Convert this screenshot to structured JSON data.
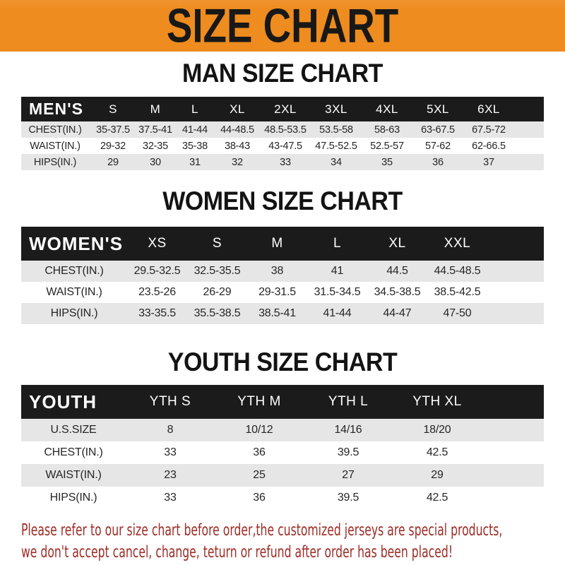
{
  "banner": {
    "title": "SIZE CHART"
  },
  "theme": {
    "banner_bg": "#ee8c1f",
    "banner_text": "#181818",
    "bar_bg": "#1b1b1b",
    "stripe": "#e6e6e6",
    "text": "#1f1f1f",
    "disclaimer": "#9e2c26"
  },
  "sections": [
    {
      "heading": "MAN SIZE CHART",
      "group_label": "MEN'S",
      "sizes": [
        "S",
        "M",
        "L",
        "XL",
        "2XL",
        "3XL",
        "4XL",
        "5XL",
        "6XL"
      ],
      "rows": [
        {
          "label": "CHEST(IN.)",
          "values": [
            "35-37.5",
            "37.5-41",
            "41-44",
            "44-48.5",
            "48.5-53.5",
            "53.5-58",
            "58-63",
            "63-67.5",
            "67.5-72"
          ]
        },
        {
          "label": "WAIST(IN.)",
          "values": [
            "29-32",
            "32-35",
            "35-38",
            "38-43",
            "43-47.5",
            "47.5-52.5",
            "52.5-57",
            "57-62",
            "62-66.5"
          ]
        },
        {
          "label": "HIPS(IN.)",
          "values": [
            "29",
            "30",
            "31",
            "32",
            "33",
            "34",
            "35",
            "36",
            "37"
          ]
        }
      ]
    },
    {
      "heading": "WOMEN SIZE CHART",
      "group_label": "WOMEN'S",
      "sizes": [
        "XS",
        "S",
        "M",
        "L",
        "XL",
        "XXL"
      ],
      "rows": [
        {
          "label": "CHEST(IN.)",
          "values": [
            "29.5-32.5",
            "32.5-35.5",
            "38",
            "41",
            "44.5",
            "44.5-48.5"
          ]
        },
        {
          "label": "WAIST(IN.)",
          "values": [
            "23.5-26",
            "26-29",
            "29-31.5",
            "31.5-34.5",
            "34.5-38.5",
            "38.5-42.5"
          ]
        },
        {
          "label": "HIPS(IN.)",
          "values": [
            "33-35.5",
            "35.5-38.5",
            "38.5-41",
            "41-44",
            "44-47",
            "47-50"
          ]
        }
      ]
    },
    {
      "heading": "YOUTH SIZE CHART",
      "group_label": "YOUTH",
      "sizes": [
        "YTH S",
        "YTH M",
        "YTH L",
        "YTH XL"
      ],
      "rows": [
        {
          "label": "U.S.SIZE",
          "values": [
            "8",
            "10/12",
            "14/16",
            "18/20"
          ]
        },
        {
          "label": "CHEST(IN.)",
          "values": [
            "33",
            "36",
            "39.5",
            "42.5"
          ]
        },
        {
          "label": "WAIST(IN.)",
          "values": [
            "23",
            "25",
            "27",
            "29"
          ]
        },
        {
          "label": "HIPS(IN.)",
          "values": [
            "33",
            "36",
            "39.5",
            "42.5"
          ]
        }
      ]
    }
  ],
  "disclaimer": {
    "lines": [
      "Please refer to our size chart before order,the customized jerseys are special products,",
      "we don't accept cancel, change, teturn or refund after order has been placed!"
    ]
  }
}
